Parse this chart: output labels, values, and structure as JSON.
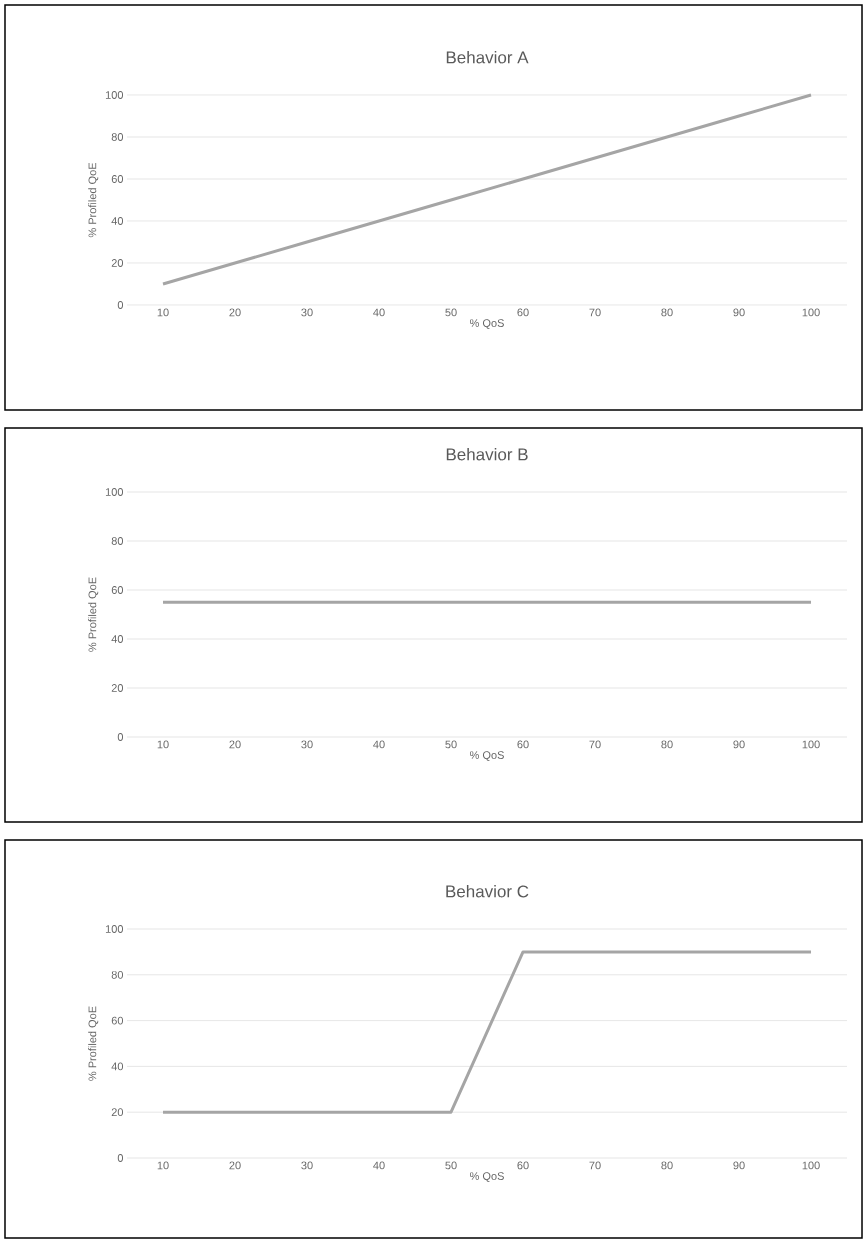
{
  "chart_data": [
    {
      "type": "line",
      "title": "Behavior A",
      "xlabel": "% QoS",
      "ylabel": "% Profiled QoE",
      "categories": [
        "10",
        "20",
        "30",
        "40",
        "50",
        "60",
        "70",
        "80",
        "90",
        "100"
      ],
      "ylim": [
        0,
        100
      ],
      "yticks": [
        0,
        20,
        40,
        60,
        80,
        100
      ],
      "grid": "y",
      "series": [
        {
          "color": "#a5a5a5",
          "values": [
            10,
            20,
            30,
            40,
            50,
            60,
            70,
            80,
            90,
            100
          ]
        }
      ]
    },
    {
      "type": "line",
      "title": "Behavior B",
      "xlabel": "% QoS",
      "ylabel": "% Profiled QoE",
      "categories": [
        "10",
        "20",
        "30",
        "40",
        "50",
        "60",
        "70",
        "80",
        "90",
        "100"
      ],
      "ylim": [
        0,
        100
      ],
      "yticks": [
        0,
        20,
        40,
        60,
        80,
        100
      ],
      "grid": "y",
      "series": [
        {
          "color": "#a5a5a5",
          "values": [
            55,
            55,
            55,
            55,
            55,
            55,
            55,
            55,
            55,
            55
          ]
        }
      ]
    },
    {
      "type": "line",
      "title": "Behavior C",
      "xlabel": "% QoS",
      "ylabel": "% Profiled QoE",
      "categories": [
        "10",
        "20",
        "30",
        "40",
        "50",
        "60",
        "70",
        "80",
        "90",
        "100"
      ],
      "ylim": [
        0,
        100
      ],
      "yticks": [
        0,
        20,
        40,
        60,
        80,
        100
      ],
      "grid": "y",
      "series": [
        {
          "color": "#a5a5a5",
          "values": [
            20,
            20,
            20,
            20,
            20,
            90,
            90,
            90,
            90,
            90
          ]
        }
      ]
    }
  ]
}
